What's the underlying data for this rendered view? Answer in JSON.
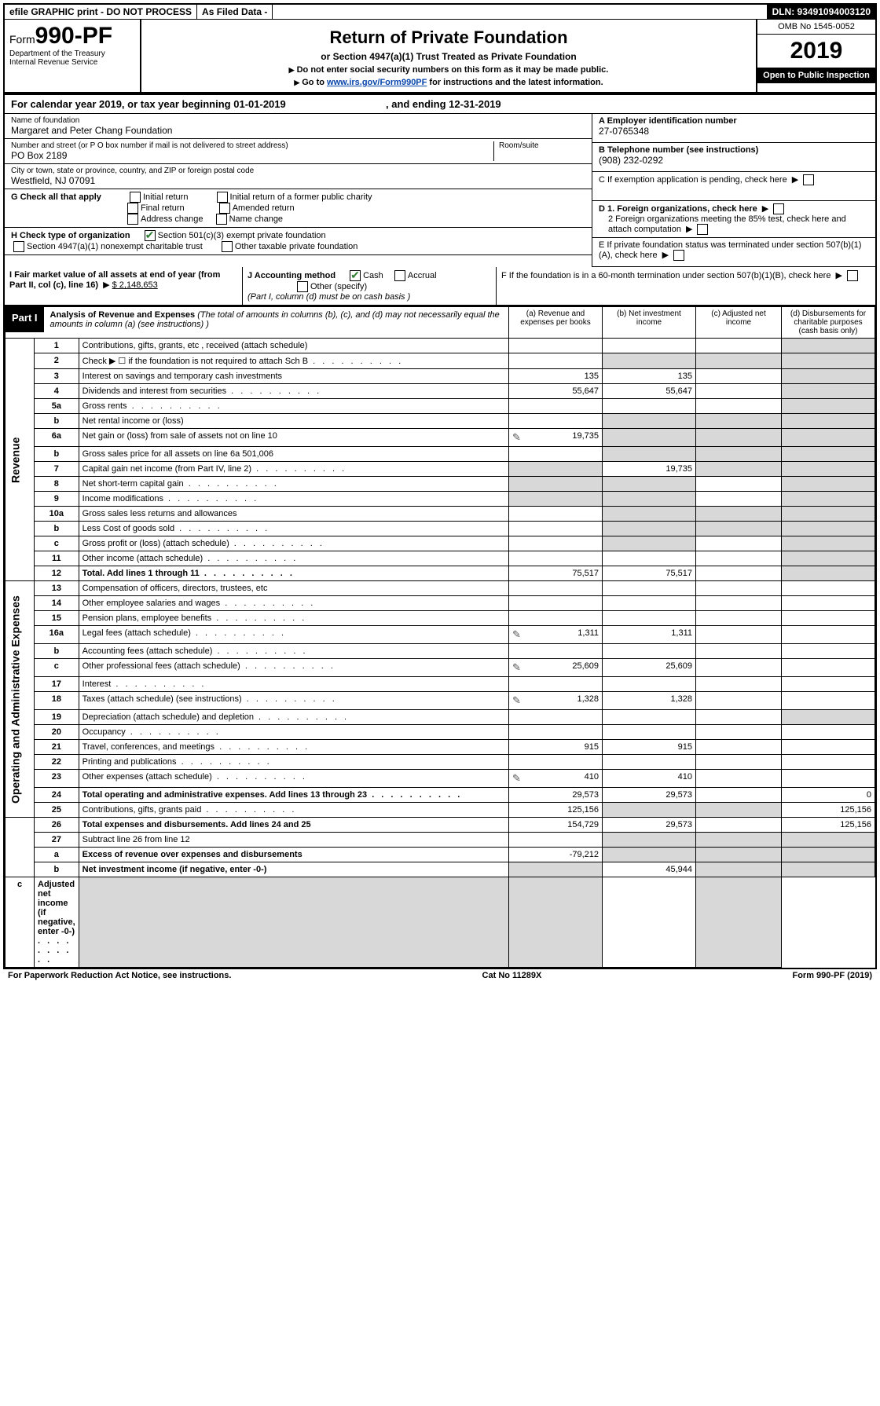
{
  "topbar": {
    "efile": "efile GRAPHIC print - DO NOT PROCESS",
    "asfiled": "As Filed Data -",
    "dln": "DLN: 93491094003120"
  },
  "header": {
    "form_prefix": "Form",
    "form_number": "990-PF",
    "dept": "Department of the Treasury",
    "irs": "Internal Revenue Service",
    "title": "Return of Private Foundation",
    "subtitle": "or Section 4947(a)(1) Trust Treated as Private Foundation",
    "instr1": "Do not enter social security numbers on this form as it may be made public.",
    "instr2_a": "Go to ",
    "instr2_link": "www.irs.gov/Form990PF",
    "instr2_b": " for instructions and the latest information.",
    "omb": "OMB No 1545-0052",
    "year": "2019",
    "open": "Open to Public Inspection"
  },
  "calendar": {
    "prefix": "For calendar year 2019, or tax year beginning ",
    "begin": "01-01-2019",
    "mid": ", and ending ",
    "end": "12-31-2019"
  },
  "ident": {
    "name_lbl": "Name of foundation",
    "name_val": "Margaret and Peter Chang Foundation",
    "addr_lbl": "Number and street (or P O  box number if mail is not delivered to street address)",
    "addr_val": "PO Box 2189",
    "room_lbl": "Room/suite",
    "city_lbl": "City or town, state or province, country, and ZIP or foreign postal code",
    "city_val": "Westfield, NJ  07091",
    "A_lbl": "A Employer identification number",
    "A_val": "27-0765348",
    "B_lbl": "B Telephone number (see instructions)",
    "B_val": "(908) 232-0292",
    "C_lbl": "C If exemption application is pending, check here",
    "D1_lbl": "D 1. Foreign organizations, check here",
    "D2_lbl": "2 Foreign organizations meeting the 85% test, check here and attach computation",
    "E_lbl": "E  If private foundation status was terminated under section 507(b)(1)(A), check here",
    "F_lbl": "F  If the foundation is in a 60-month termination under section 507(b)(1)(B), check here"
  },
  "sectionG": {
    "g_lbl": "G Check all that apply",
    "initial": "Initial return",
    "initial_former": "Initial return of a former public charity",
    "final": "Final return",
    "amended": "Amended return",
    "address": "Address change",
    "name": "Name change",
    "h_lbl": "H Check type of organization",
    "h_501c3": "Section 501(c)(3) exempt private foundation",
    "h_4947": "Section 4947(a)(1) nonexempt charitable trust",
    "h_other": "Other taxable private foundation",
    "i_lbl": "I Fair market value of all assets at end of year (from Part II, col  (c), line 16)",
    "i_val": "$  2,148,653",
    "j_lbl": "J Accounting method",
    "j_cash": "Cash",
    "j_accrual": "Accrual",
    "j_other": "Other (specify)",
    "j_note": "(Part I, column (d) must be on cash basis )"
  },
  "part1": {
    "label": "Part I",
    "title": "Analysis of Revenue and Expenses",
    "note": "(The total of amounts in columns (b), (c), and (d) may not necessarily equal the amounts in column (a) (see instructions) )",
    "col_a": "(a) Revenue and expenses per books",
    "col_b": "(b) Net investment income",
    "col_c": "(c) Adjusted net income",
    "col_d": "(d) Disbursements for charitable purposes (cash basis only)",
    "side_revenue": "Revenue",
    "side_expenses": "Operating and Administrative Expenses"
  },
  "rows": [
    {
      "n": "1",
      "d": "Contributions, gifts, grants, etc , received (attach schedule)",
      "a": "",
      "b": "",
      "c": "",
      "dd": "",
      "bshade": false,
      "cshade": false,
      "dshade": true,
      "icon": false
    },
    {
      "n": "2",
      "d": "Check ▶ ☐ if the foundation is not required to attach Sch  B",
      "a": "",
      "b": "",
      "c": "",
      "dd": "",
      "bshade": true,
      "cshade": true,
      "dshade": true,
      "icon": false,
      "dots": true
    },
    {
      "n": "3",
      "d": "Interest on savings and temporary cash investments",
      "a": "135",
      "b": "135",
      "c": "",
      "dd": "",
      "dshade": true
    },
    {
      "n": "4",
      "d": "Dividends and interest from securities",
      "a": "55,647",
      "b": "55,647",
      "c": "",
      "dd": "",
      "dshade": true,
      "dots": true
    },
    {
      "n": "5a",
      "d": "Gross rents",
      "a": "",
      "b": "",
      "c": "",
      "dd": "",
      "dshade": true,
      "dots": true
    },
    {
      "n": "b",
      "d": "Net rental income or (loss)",
      "a": "",
      "b": "",
      "c": "",
      "dd": "",
      "bshade": true,
      "cshade": true,
      "dshade": true
    },
    {
      "n": "6a",
      "d": "Net gain or (loss) from sale of assets not on line 10",
      "a": "19,735",
      "b": "",
      "c": "",
      "dd": "",
      "bshade": true,
      "cshade": true,
      "dshade": true,
      "icon": true
    },
    {
      "n": "b",
      "d": "Gross sales price for all assets on line 6a          501,006",
      "a": "",
      "b": "",
      "c": "",
      "dd": "",
      "bshade": true,
      "cshade": true,
      "dshade": true
    },
    {
      "n": "7",
      "d": "Capital gain net income (from Part IV, line 2)",
      "a": "",
      "b": "19,735",
      "c": "",
      "dd": "",
      "ashade": true,
      "cshade": true,
      "dshade": true,
      "dots": true
    },
    {
      "n": "8",
      "d": "Net short-term capital gain",
      "a": "",
      "b": "",
      "c": "",
      "dd": "",
      "ashade": true,
      "bshade": true,
      "dshade": true,
      "dots": true
    },
    {
      "n": "9",
      "d": "Income modifications",
      "a": "",
      "b": "",
      "c": "",
      "dd": "",
      "ashade": true,
      "bshade": true,
      "dshade": true,
      "dots": true
    },
    {
      "n": "10a",
      "d": "Gross sales less returns and allowances",
      "a": "",
      "b": "",
      "c": "",
      "dd": "",
      "bshade": true,
      "cshade": true,
      "dshade": true
    },
    {
      "n": "b",
      "d": "Less  Cost of goods sold",
      "a": "",
      "b": "",
      "c": "",
      "dd": "",
      "bshade": true,
      "cshade": true,
      "dshade": true,
      "dots": true
    },
    {
      "n": "c",
      "d": "Gross profit or (loss) (attach schedule)",
      "a": "",
      "b": "",
      "c": "",
      "dd": "",
      "bshade": true,
      "dshade": true,
      "dots": true
    },
    {
      "n": "11",
      "d": "Other income (attach schedule)",
      "a": "",
      "b": "",
      "c": "",
      "dd": "",
      "dshade": true,
      "dots": true
    },
    {
      "n": "12",
      "d": "Total. Add lines 1 through 11",
      "a": "75,517",
      "b": "75,517",
      "c": "",
      "dd": "",
      "dshade": true,
      "bold": true,
      "dots": true
    },
    {
      "n": "13",
      "d": "Compensation of officers, directors, trustees, etc",
      "a": "",
      "b": "",
      "c": "",
      "dd": ""
    },
    {
      "n": "14",
      "d": "Other employee salaries and wages",
      "a": "",
      "b": "",
      "c": "",
      "dd": "",
      "dots": true
    },
    {
      "n": "15",
      "d": "Pension plans, employee benefits",
      "a": "",
      "b": "",
      "c": "",
      "dd": "",
      "dots": true
    },
    {
      "n": "16a",
      "d": "Legal fees (attach schedule)",
      "a": "1,311",
      "b": "1,311",
      "c": "",
      "dd": "",
      "icon": true,
      "dots": true
    },
    {
      "n": "b",
      "d": "Accounting fees (attach schedule)",
      "a": "",
      "b": "",
      "c": "",
      "dd": "",
      "dots": true
    },
    {
      "n": "c",
      "d": "Other professional fees (attach schedule)",
      "a": "25,609",
      "b": "25,609",
      "c": "",
      "dd": "",
      "icon": true,
      "dots": true
    },
    {
      "n": "17",
      "d": "Interest",
      "a": "",
      "b": "",
      "c": "",
      "dd": "",
      "dots": true
    },
    {
      "n": "18",
      "d": "Taxes (attach schedule) (see instructions)",
      "a": "1,328",
      "b": "1,328",
      "c": "",
      "dd": "",
      "icon": true,
      "dots": true
    },
    {
      "n": "19",
      "d": "Depreciation (attach schedule) and depletion",
      "a": "",
      "b": "",
      "c": "",
      "dd": "",
      "dshade": true,
      "dots": true
    },
    {
      "n": "20",
      "d": "Occupancy",
      "a": "",
      "b": "",
      "c": "",
      "dd": "",
      "dots": true
    },
    {
      "n": "21",
      "d": "Travel, conferences, and meetings",
      "a": "915",
      "b": "915",
      "c": "",
      "dd": "",
      "dots": true
    },
    {
      "n": "22",
      "d": "Printing and publications",
      "a": "",
      "b": "",
      "c": "",
      "dd": "",
      "dots": true
    },
    {
      "n": "23",
      "d": "Other expenses (attach schedule)",
      "a": "410",
      "b": "410",
      "c": "",
      "dd": "",
      "icon": true,
      "dots": true
    },
    {
      "n": "24",
      "d": "Total operating and administrative expenses. Add lines 13 through 23",
      "a": "29,573",
      "b": "29,573",
      "c": "",
      "dd": "0",
      "bold": true,
      "dots": true
    },
    {
      "n": "25",
      "d": "Contributions, gifts, grants paid",
      "a": "125,156",
      "b": "",
      "c": "",
      "dd": "125,156",
      "bshade": true,
      "cshade": true,
      "dots": true
    },
    {
      "n": "26",
      "d": "Total expenses and disbursements. Add lines 24 and 25",
      "a": "154,729",
      "b": "29,573",
      "c": "",
      "dd": "125,156",
      "bold": true
    },
    {
      "n": "27",
      "d": "Subtract line 26 from line 12",
      "a": "",
      "b": "",
      "c": "",
      "dd": "",
      "bshade": true,
      "cshade": true,
      "dshade": true
    },
    {
      "n": "a",
      "d": "Excess of revenue over expenses and disbursements",
      "a": "-79,212",
      "b": "",
      "c": "",
      "dd": "",
      "bshade": true,
      "cshade": true,
      "dshade": true,
      "bold": true
    },
    {
      "n": "b",
      "d": "Net investment income (if negative, enter -0-)",
      "a": "",
      "b": "45,944",
      "c": "",
      "dd": "",
      "ashade": true,
      "cshade": true,
      "dshade": true,
      "bold": true
    },
    {
      "n": "c",
      "d": "Adjusted net income (if negative, enter -0-)",
      "a": "",
      "b": "",
      "c": "",
      "dd": "",
      "ashade": true,
      "bshade": true,
      "dshade": true,
      "bold": true,
      "dots": true
    }
  ],
  "footer": {
    "left": "For Paperwork Reduction Act Notice, see instructions.",
    "mid": "Cat  No  11289X",
    "right": "Form 990-PF (2019)"
  }
}
